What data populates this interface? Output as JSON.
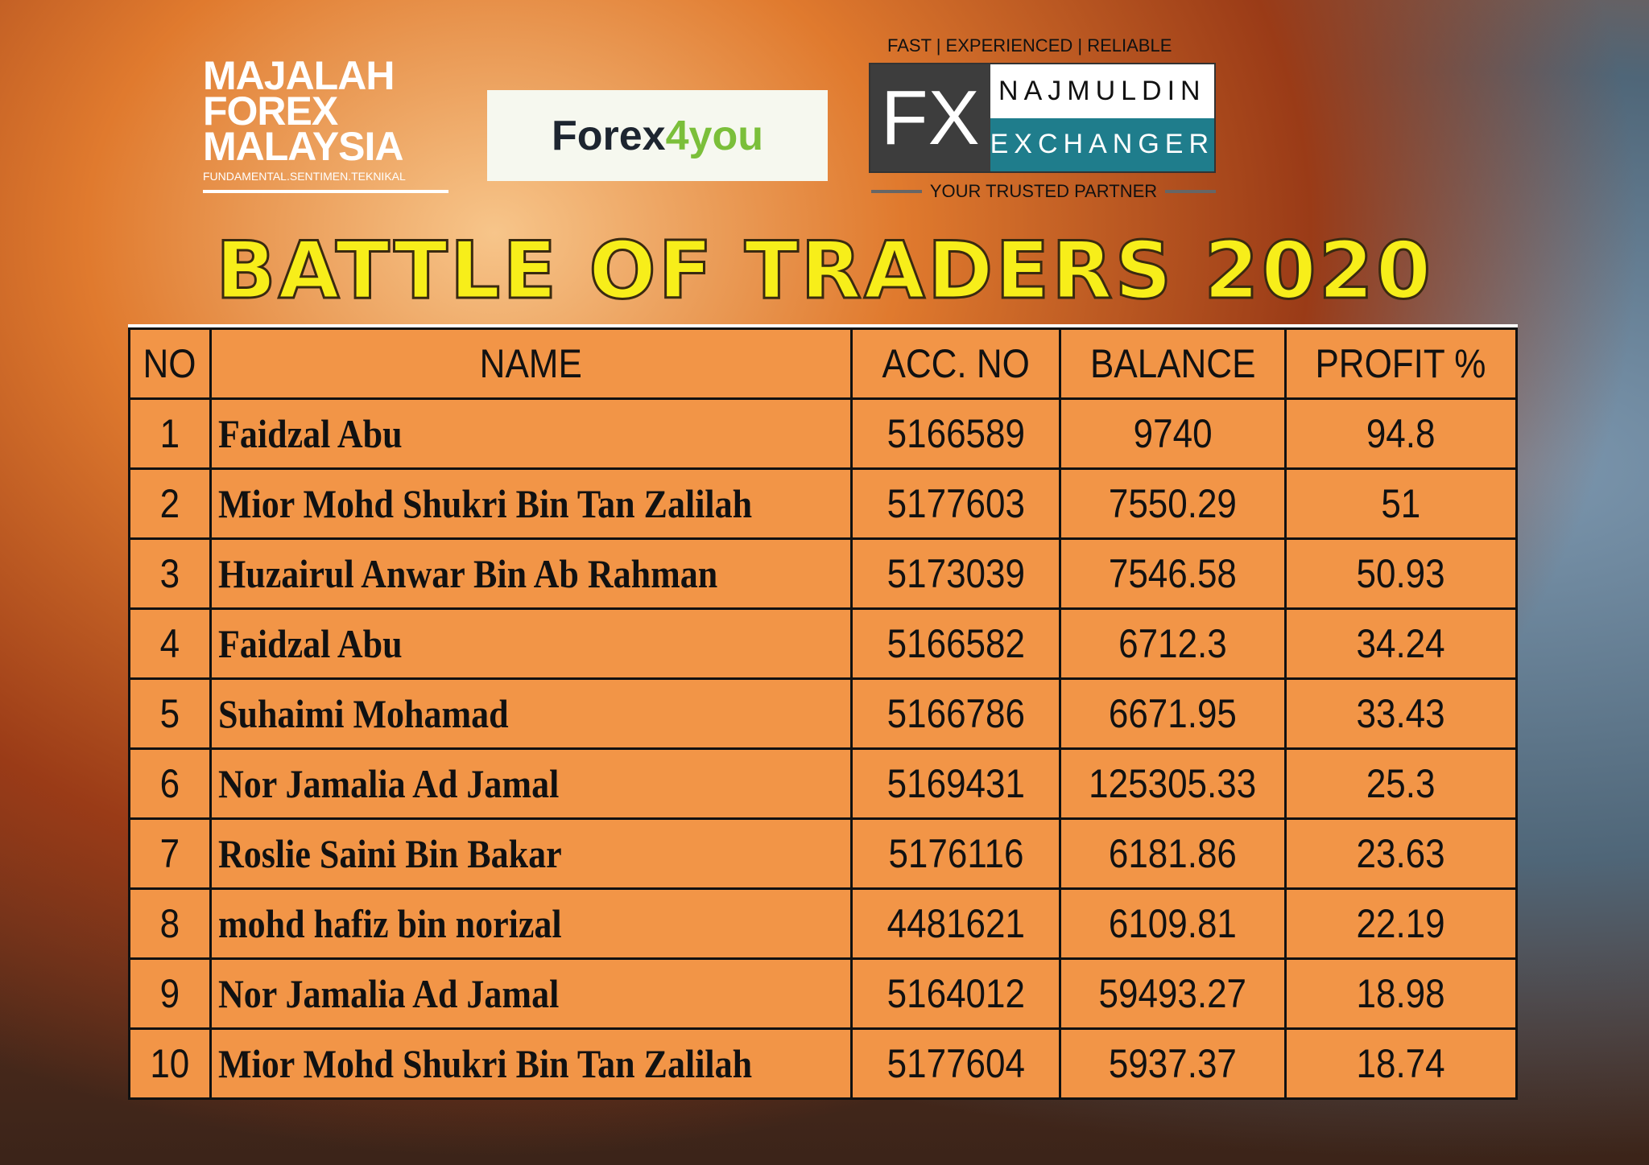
{
  "logos": {
    "majalah": {
      "lines": [
        "MAJALAH",
        "FOREX",
        "MALAYSIA"
      ],
      "tagline": "FUNDAMENTAL.SENTIMEN.TEKNIKAL"
    },
    "forex4you": {
      "part1": "Forex",
      "part2": "4you"
    },
    "najmuldin": {
      "slogan": "FAST | EXPERIENCED | RELIABLE",
      "fx": "FX",
      "name_top": "NAJMULDIN",
      "name_bottom": "EXCHANGER",
      "subtitle": "YOUR TRUSTED PARTNER"
    }
  },
  "title": "BATTLE OF TRADERS 2020",
  "table": {
    "headers": [
      "NO",
      "NAME",
      "ACC. NO",
      "BALANCE",
      "PROFIT %"
    ],
    "rows": [
      [
        "1",
        "Faidzal Abu",
        "5166589",
        "9740",
        "94.8"
      ],
      [
        "2",
        "Mior Mohd Shukri Bin Tan Zalilah",
        "5177603",
        "7550.29",
        "51"
      ],
      [
        "3",
        "Huzairul Anwar Bin Ab Rahman",
        "5173039",
        "7546.58",
        "50.93"
      ],
      [
        "4",
        "Faidzal Abu",
        "5166582",
        "6712.3",
        "34.24"
      ],
      [
        "5",
        "Suhaimi Mohamad",
        "5166786",
        "6671.95",
        "33.43"
      ],
      [
        "6",
        "Nor Jamalia Ad Jamal",
        "5169431",
        "125305.33",
        "25.3"
      ],
      [
        "7",
        "Roslie Saini Bin Bakar",
        "5176116",
        "6181.86",
        "23.63"
      ],
      [
        "8",
        "mohd hafiz bin norizal",
        "4481621",
        "6109.81",
        "22.19"
      ],
      [
        "9",
        "Nor Jamalia Ad Jamal",
        "5164012",
        "59493.27",
        "18.98"
      ],
      [
        "10",
        "Mior Mohd Shukri Bin Tan Zalilah",
        "5177604",
        "5937.37",
        "18.74"
      ]
    ]
  },
  "colors": {
    "table_bg": "#f29547",
    "title": "#f7ee1a",
    "exchanger_teal": "#1f7d8c"
  }
}
